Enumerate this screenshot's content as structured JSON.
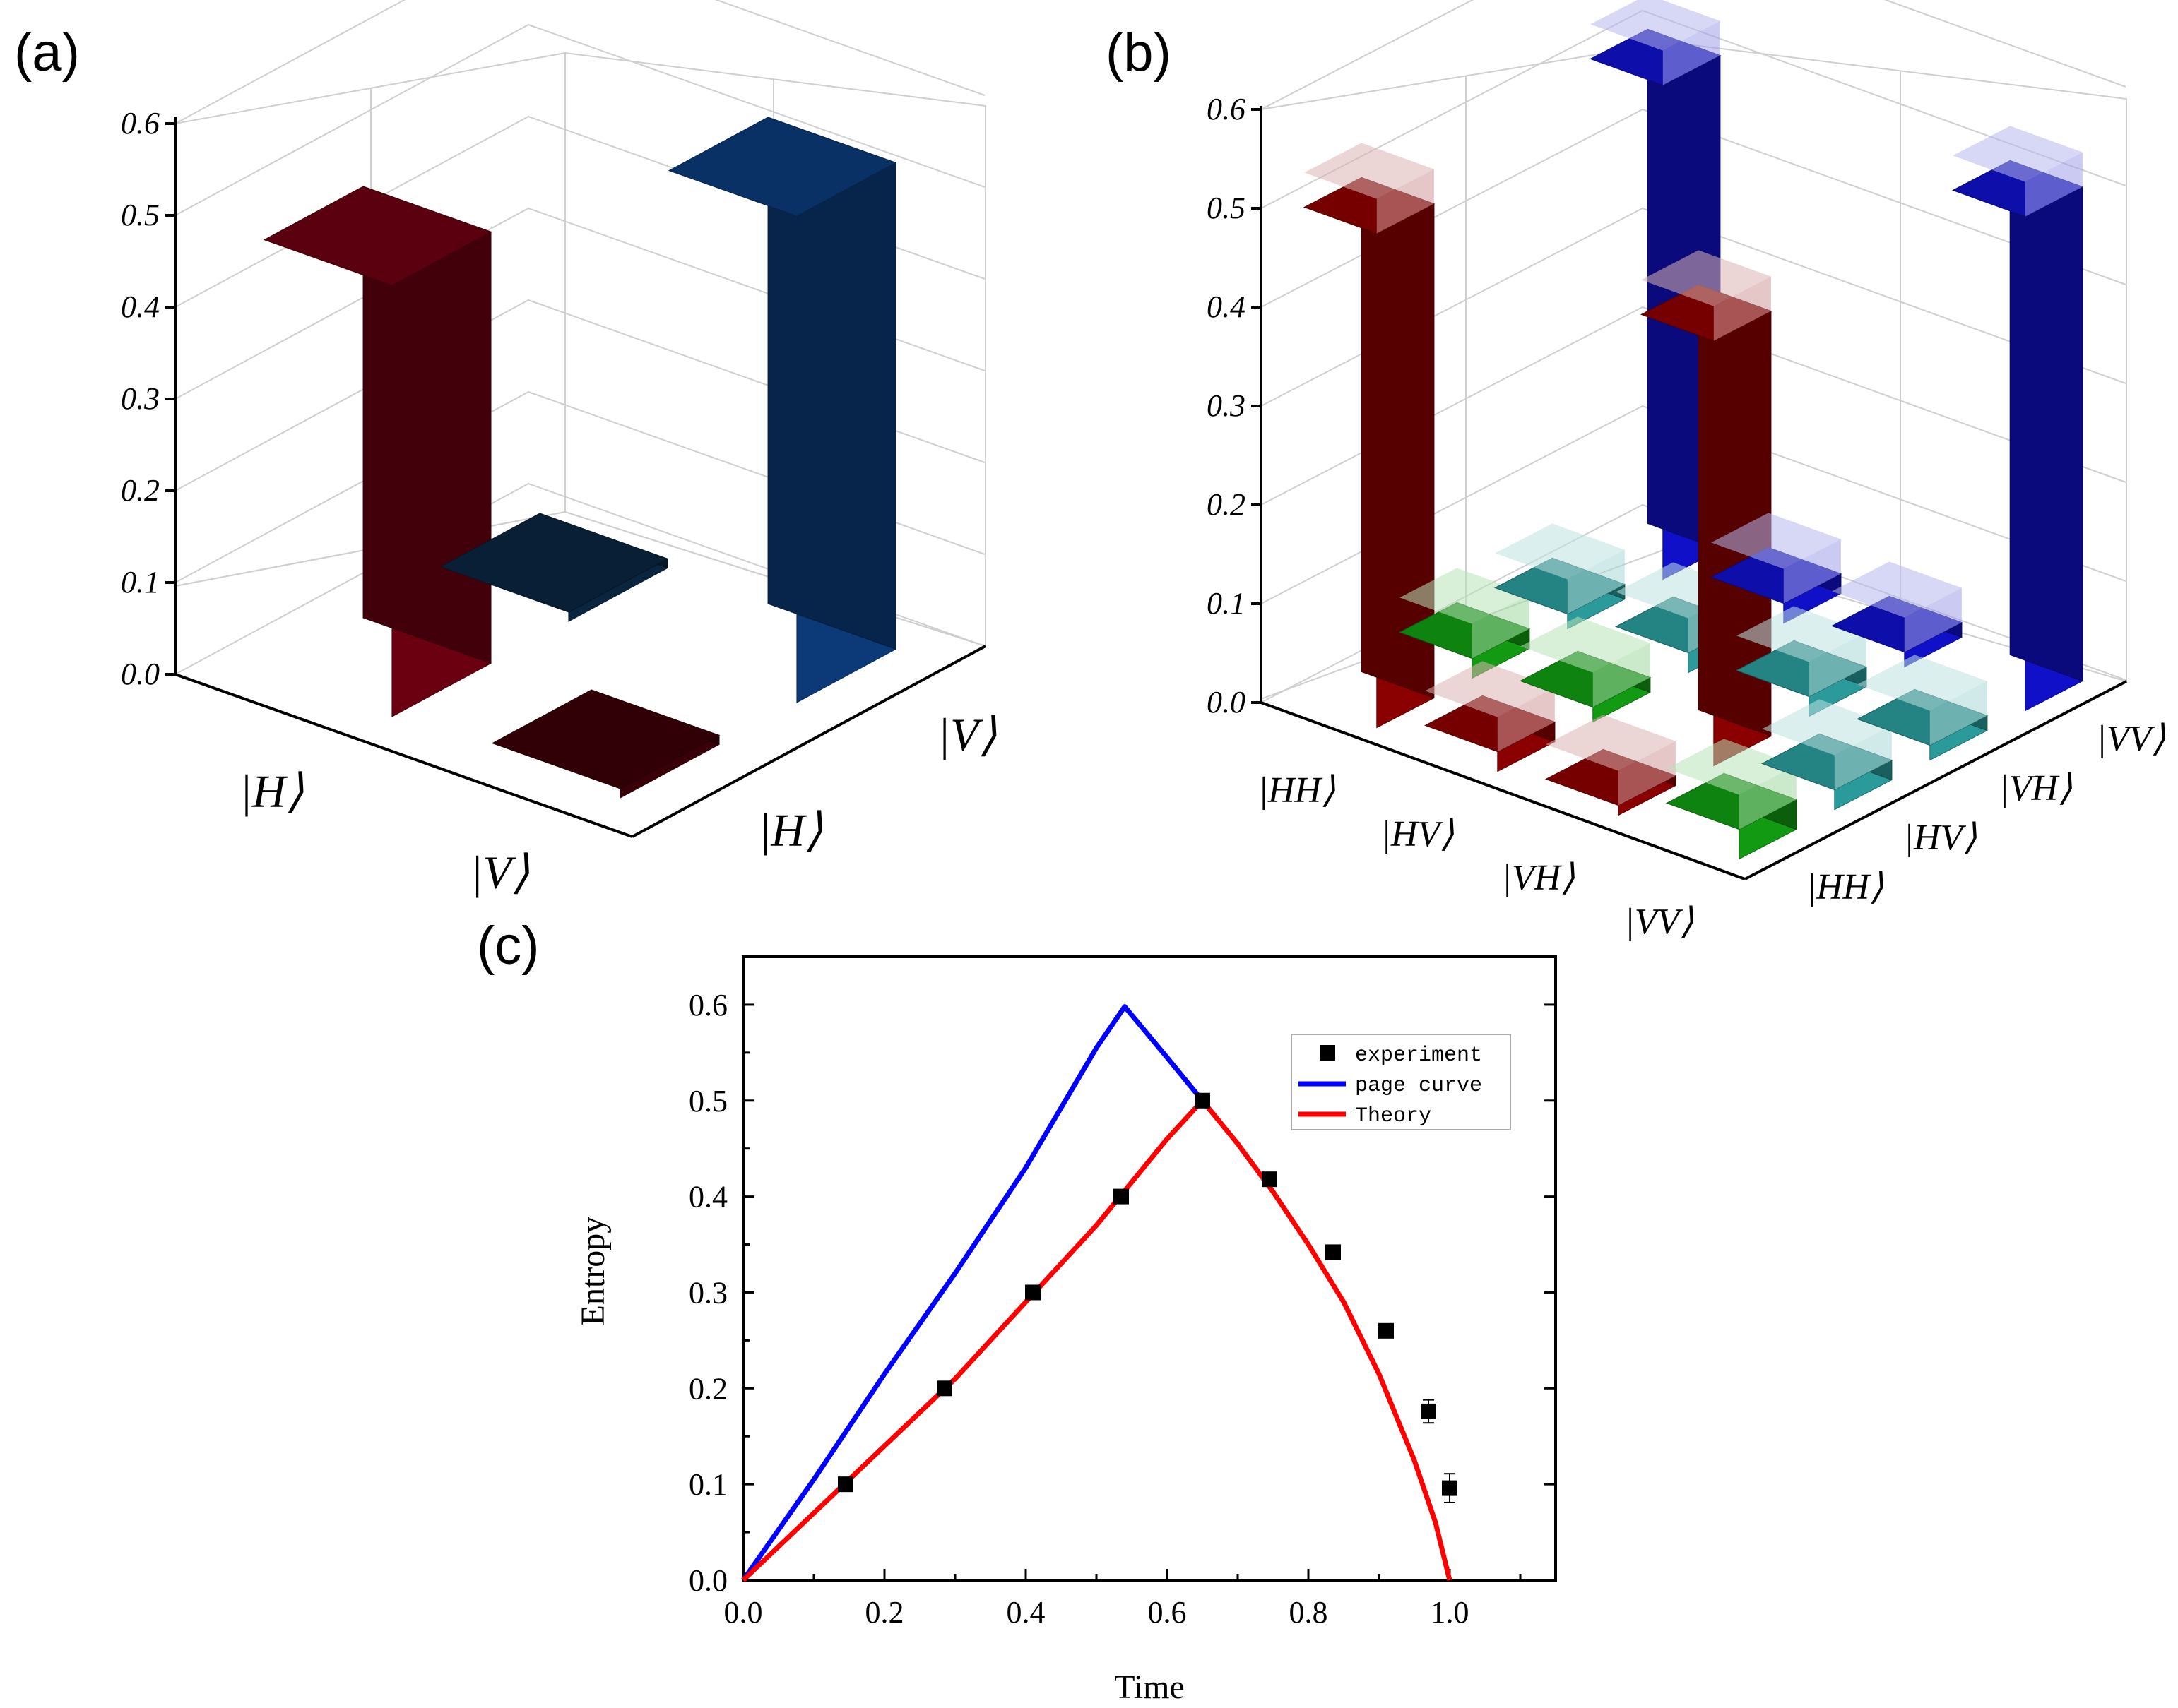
{
  "panels": {
    "a": {
      "label": "(a)"
    },
    "b": {
      "label": "(b)"
    },
    "c": {
      "label": "(c)"
    }
  },
  "chart_data": [
    {
      "type": "bar3d",
      "panel": "(a)",
      "zticks": [
        "0.0",
        "0.1",
        "0.2",
        "0.3",
        "0.4",
        "0.5",
        "0.6"
      ],
      "zlim": [
        0,
        0.6
      ],
      "row_labels": [
        "|H⟩",
        "|V⟩"
      ],
      "col_labels": [
        "|H⟩",
        "|V⟩"
      ],
      "bars": [
        {
          "row": "|H⟩",
          "col": "|H⟩",
          "value": 0.47,
          "color": "#6b0010"
        },
        {
          "row": "|H⟩",
          "col": "|V⟩",
          "value": 0.01,
          "color": "#0a2540"
        },
        {
          "row": "|V⟩",
          "col": "|H⟩",
          "value": 0.01,
          "color": "#3a0008"
        },
        {
          "row": "|V⟩",
          "col": "|V⟩",
          "value": 0.53,
          "color": "#0c3a78"
        }
      ]
    },
    {
      "type": "bar3d",
      "panel": "(b)",
      "zticks": [
        "0.0",
        "0.1",
        "0.2",
        "0.3",
        "0.4",
        "0.5",
        "0.6"
      ],
      "zlim": [
        0,
        0.6
      ],
      "row_labels": [
        "|HH⟩",
        "|HV⟩",
        "|VH⟩",
        "|VV⟩"
      ],
      "col_labels": [
        "|HH⟩",
        "|HV⟩",
        "|VH⟩",
        "|VV⟩"
      ],
      "bars": [
        {
          "row": "|HH⟩",
          "col": "|HH⟩",
          "value": 0.5,
          "color": "#8b0000"
        },
        {
          "row": "|HH⟩",
          "col": "|HV⟩",
          "value": 0.02,
          "color": "#129a12"
        },
        {
          "row": "|HH⟩",
          "col": "|VH⟩",
          "value": 0.015,
          "color": "#2a9a9a"
        },
        {
          "row": "|HH⟩",
          "col": "|VV⟩",
          "value": 0.5,
          "color": "#1010c8"
        },
        {
          "row": "|HV⟩",
          "col": "|HH⟩",
          "value": 0.02,
          "color": "#8b0000"
        },
        {
          "row": "|HV⟩",
          "col": "|HV⟩",
          "value": 0.015,
          "color": "#129a12"
        },
        {
          "row": "|HV⟩",
          "col": "|VH⟩",
          "value": 0.02,
          "color": "#2a9a9a"
        },
        {
          "row": "|HV⟩",
          "col": "|VV⟩",
          "value": 0.02,
          "color": "#1010c8"
        },
        {
          "row": "|VH⟩",
          "col": "|HH⟩",
          "value": 0.01,
          "color": "#8b0000"
        },
        {
          "row": "|VH⟩",
          "col": "|HV⟩",
          "value": 0.43,
          "color": "#8b0000"
        },
        {
          "row": "|VH⟩",
          "col": "|VH⟩",
          "value": 0.02,
          "color": "#2a9a9a"
        },
        {
          "row": "|VH⟩",
          "col": "|VV⟩",
          "value": 0.015,
          "color": "#1010c8"
        },
        {
          "row": "|VV⟩",
          "col": "|HH⟩",
          "value": 0.03,
          "color": "#129a12"
        },
        {
          "row": "|VV⟩",
          "col": "|HV⟩",
          "value": 0.02,
          "color": "#2a9a9a"
        },
        {
          "row": "|VV⟩",
          "col": "|VH⟩",
          "value": 0.015,
          "color": "#2a9a9a"
        },
        {
          "row": "|VV⟩",
          "col": "|VV⟩",
          "value": 0.5,
          "color": "#1010c8"
        }
      ]
    },
    {
      "type": "line",
      "panel": "(c)",
      "xlabel": "Time",
      "ylabel": "Entropy",
      "xlim": [
        0,
        1.15
      ],
      "ylim": [
        0,
        0.65
      ],
      "xticks": [
        "0.0",
        "0.2",
        "0.4",
        "0.6",
        "0.8",
        "1.0"
      ],
      "yticks": [
        "0.0",
        "0.1",
        "0.2",
        "0.3",
        "0.4",
        "0.5",
        "0.6"
      ],
      "legend": {
        "location": "top-right",
        "entries": [
          "experiment",
          "page curve",
          "Theory"
        ]
      },
      "series": [
        {
          "name": "experiment",
          "kind": "scatter",
          "color": "#000000",
          "x": [
            0.145,
            0.285,
            0.41,
            0.535,
            0.65,
            0.745,
            0.835,
            0.91,
            0.97,
            1.0
          ],
          "y": [
            0.1,
            0.2,
            0.3,
            0.4,
            0.5,
            0.418,
            0.342,
            0.26,
            0.176,
            0.096
          ],
          "err": [
            0,
            0,
            0,
            0,
            0,
            0,
            0,
            0,
            0.012,
            0.015
          ]
        },
        {
          "name": "page curve",
          "kind": "line",
          "color": "#0000ff",
          "x": [
            0,
            0.1,
            0.2,
            0.3,
            0.4,
            0.5,
            0.54,
            0.6,
            0.65
          ],
          "y": [
            0,
            0.105,
            0.215,
            0.32,
            0.43,
            0.555,
            0.598,
            0.545,
            0.5
          ]
        },
        {
          "name": "Theory",
          "kind": "line",
          "color": "#ff0000",
          "x": [
            0,
            0.1,
            0.2,
            0.3,
            0.4,
            0.5,
            0.6,
            0.65,
            0.7,
            0.75,
            0.8,
            0.85,
            0.9,
            0.95,
            0.98,
            1.0
          ],
          "y": [
            0,
            0.07,
            0.14,
            0.21,
            0.29,
            0.37,
            0.46,
            0.5,
            0.455,
            0.405,
            0.35,
            0.29,
            0.215,
            0.125,
            0.06,
            0.0
          ]
        }
      ]
    }
  ]
}
